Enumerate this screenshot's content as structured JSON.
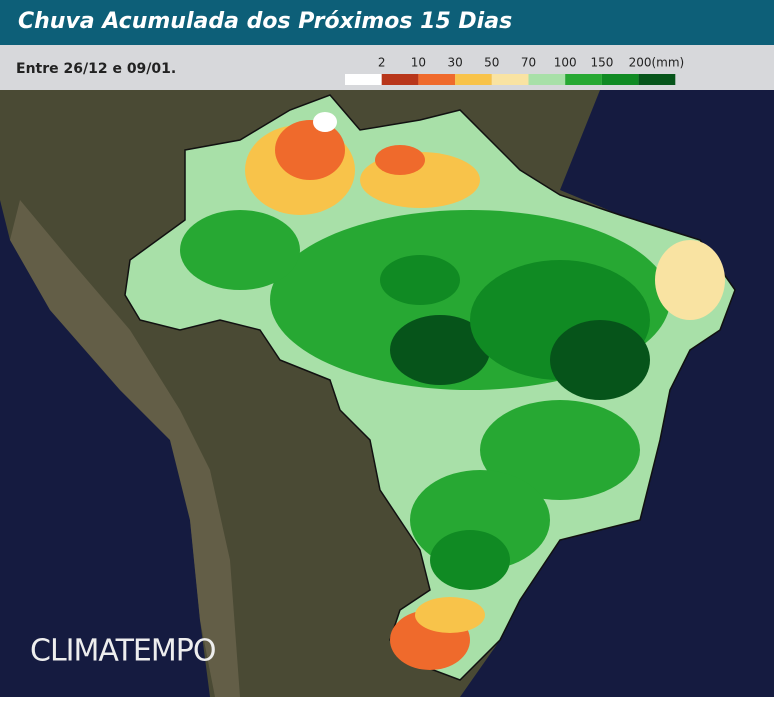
{
  "header": {
    "title": "Chuva Acumulada dos Próximos 15 Dias",
    "subtitle": "Entre 26/12 e 09/01."
  },
  "legend": {
    "items": [
      {
        "label": "2",
        "color": "#ffffff"
      },
      {
        "label": "10",
        "color": "#b8361a"
      },
      {
        "label": "30",
        "color": "#ef6a2c"
      },
      {
        "label": "50",
        "color": "#f8c34a"
      },
      {
        "label": "70",
        "color": "#f9e3a2"
      },
      {
        "label": "100",
        "color": "#a8e0a8"
      },
      {
        "label": "150",
        "color": "#27a833"
      },
      {
        "label": "200(mm)",
        "color": "#108a23"
      },
      {
        "color": "#06541a"
      }
    ]
  },
  "brand": "CLIMATEMPO"
}
